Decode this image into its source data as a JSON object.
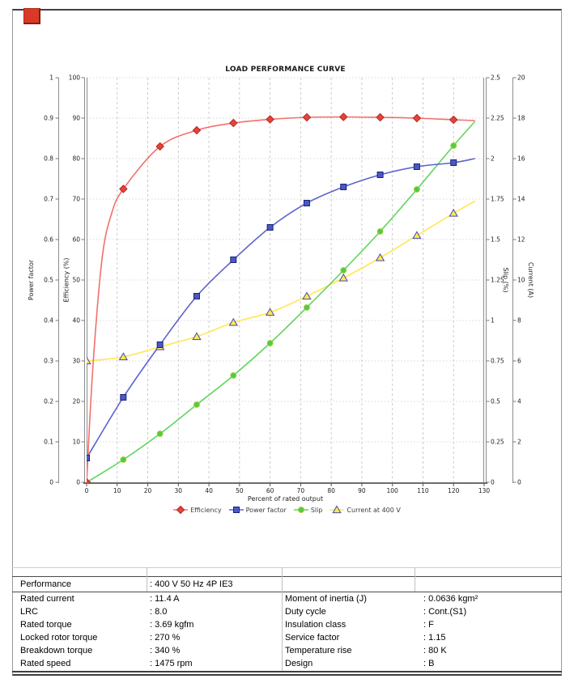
{
  "annotation": {
    "red_box_color": "#d93a28"
  },
  "chart_data": {
    "type": "line",
    "title": "LOAD PERFORMANCE CURVE",
    "xlabel": "Percent of rated output",
    "xlim": [
      0,
      130
    ],
    "x_ticks": [
      0,
      10,
      20,
      30,
      40,
      50,
      60,
      70,
      80,
      90,
      100,
      110,
      120,
      130
    ],
    "grid": "on",
    "legend_position": "bottom",
    "x": [
      0,
      12,
      24,
      36,
      48,
      60,
      72,
      84,
      96,
      108,
      120
    ],
    "axes": [
      {
        "id": "power_factor",
        "label": "Power factor",
        "side": "left-outer",
        "ylim": [
          0,
          1
        ],
        "ticks": [
          "1",
          "0.9",
          "0.8",
          "0.7",
          "0.6",
          "0.5",
          "0.4",
          "0.3",
          "0.2",
          "0.1",
          "0"
        ]
      },
      {
        "id": "efficiency",
        "label": "Efficiency (%)",
        "side": "left-inner",
        "ylim": [
          0,
          100
        ],
        "ticks": [
          "100",
          "90",
          "80",
          "70",
          "60",
          "50",
          "40",
          "30",
          "20",
          "10",
          "0"
        ]
      },
      {
        "id": "slip",
        "label": "Slip (%)",
        "side": "right-inner",
        "ylim": [
          0,
          2.5
        ],
        "ticks": [
          "2.5",
          "2.25",
          "2",
          "1.75",
          "1.5",
          "1.25",
          "1",
          "0.75",
          "0.5",
          "0.25",
          "0"
        ]
      },
      {
        "id": "current",
        "label": "Current (A)",
        "side": "right-outer",
        "ylim": [
          0,
          20
        ],
        "ticks": [
          "20",
          "18",
          "16",
          "14",
          "12",
          "10",
          "8",
          "6",
          "4",
          "2",
          "0"
        ]
      }
    ],
    "series": [
      {
        "name": "Current at 400 V",
        "axis": "current",
        "marker": "triangle",
        "line_color": "#ffe84f",
        "marker_fill": "#ffe94d",
        "marker_edge": "#4747b3",
        "values": [
          6.0,
          6.2,
          6.7,
          7.2,
          7.9,
          8.4,
          9.2,
          10.1,
          11.1,
          12.2,
          13.3
        ],
        "path": {
          "x": [
            0,
            12,
            24,
            36,
            48,
            60,
            72,
            84,
            96,
            108,
            120,
            127
          ],
          "v": [
            6.0,
            6.2,
            6.7,
            7.2,
            7.9,
            8.4,
            9.2,
            10.1,
            11.1,
            12.2,
            13.3,
            13.9
          ]
        }
      },
      {
        "name": "Slip",
        "axis": "slip",
        "marker": "circle",
        "line_color": "#5fd45f",
        "marker_fill": "#4ecc44",
        "marker_edge": "#9fc832",
        "values": [
          0,
          0.14,
          0.3,
          0.48,
          0.66,
          0.86,
          1.08,
          1.31,
          1.55,
          1.81,
          2.08
        ],
        "path": {
          "x": [
            0,
            12,
            24,
            36,
            48,
            60,
            72,
            84,
            96,
            108,
            120,
            127
          ],
          "v": [
            0,
            0.14,
            0.3,
            0.48,
            0.66,
            0.86,
            1.08,
            1.31,
            1.55,
            1.81,
            2.08,
            2.23
          ]
        }
      },
      {
        "name": "Power factor",
        "axis": "power_factor",
        "marker": "square",
        "line_color": "#5c63cd",
        "marker_fill": "#4a59c2",
        "marker_edge": "#1b2178",
        "values": [
          0.06,
          0.21,
          0.34,
          0.46,
          0.55,
          0.63,
          0.69,
          0.73,
          0.76,
          0.78,
          0.79
        ],
        "path": {
          "x": [
            0,
            12,
            24,
            36,
            48,
            60,
            72,
            84,
            96,
            108,
            120,
            127
          ],
          "v": [
            0.06,
            0.21,
            0.34,
            0.46,
            0.55,
            0.63,
            0.69,
            0.73,
            0.76,
            0.78,
            0.79,
            0.8
          ]
        }
      },
      {
        "name": "Efficiency",
        "axis": "efficiency",
        "marker": "diamond",
        "line_color": "#f2706b",
        "marker_fill": "#e8413c",
        "marker_edge": "#b02a20",
        "values": [
          0,
          72.5,
          83,
          87,
          88.8,
          89.7,
          90.2,
          90.3,
          90.2,
          90,
          89.6
        ],
        "path": {
          "x": [
            0,
            2,
            5,
            8,
            12,
            24,
            36,
            48,
            60,
            72,
            84,
            96,
            108,
            120,
            127
          ],
          "v": [
            0,
            28,
            55,
            66,
            72.5,
            83,
            87,
            88.8,
            89.7,
            90.2,
            90.3,
            90.2,
            90,
            89.6,
            89.4
          ]
        }
      }
    ]
  },
  "table": {
    "header": {
      "label": "Performance",
      "value": ": 400 V 50 Hz 4P IE3"
    },
    "rows": [
      {
        "l1": "Rated current",
        "v1": ": 11.4 A",
        "l2": "Moment of inertia (J)",
        "v2": ": 0.0636 kgm²"
      },
      {
        "l1": "LRC",
        "v1": ": 8.0",
        "l2": "Duty cycle",
        "v2": ": Cont.(S1)"
      },
      {
        "l1": "Rated torque",
        "v1": ": 3.69 kgfm",
        "l2": "Insulation class",
        "v2": ": F"
      },
      {
        "l1": "Locked rotor torque",
        "v1": ": 270 %",
        "l2": "Service factor",
        "v2": ": 1.15"
      },
      {
        "l1": "Breakdown torque",
        "v1": ": 340 %",
        "l2": "Temperature rise",
        "v2": ": 80 K"
      },
      {
        "l1": "Rated speed",
        "v1": ": 1475 rpm",
        "l2": "Design",
        "v2": ": B"
      }
    ]
  }
}
